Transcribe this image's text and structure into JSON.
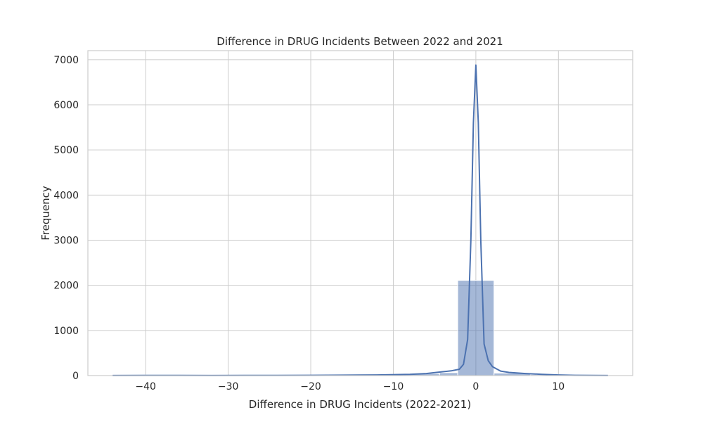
{
  "chart_data": {
    "type": "bar",
    "title": "Difference in DRUG Incidents Between 2022 and 2021",
    "xlabel": "Difference in DRUG Incidents (2022-2021)",
    "ylabel": "Frequency",
    "xlim": [
      -47,
      19
    ],
    "ylim": [
      0,
      7200
    ],
    "xticks": [
      -40,
      -30,
      -20,
      -10,
      0,
      10
    ],
    "xtick_labels": [
      "−40",
      "−30",
      "−20",
      "−10",
      "0",
      "10"
    ],
    "yticks": [
      0,
      1000,
      2000,
      3000,
      4000,
      5000,
      6000,
      7000
    ],
    "ytick_labels": [
      "0",
      "1000",
      "2000",
      "3000",
      "4000",
      "5000",
      "6000",
      "7000"
    ],
    "grid": true,
    "bar_color": "#4c72b0",
    "line_color": "#4c72b0",
    "histogram_bins": [
      {
        "x0": -44.0,
        "x1": -39.6,
        "value": 15
      },
      {
        "x0": -39.6,
        "x1": -35.2,
        "value": 12
      },
      {
        "x0": -35.2,
        "x1": -30.8,
        "value": 3
      },
      {
        "x0": -30.8,
        "x1": -26.4,
        "value": 4
      },
      {
        "x0": -26.4,
        "x1": -22.0,
        "value": 6
      },
      {
        "x0": -22.0,
        "x1": -17.6,
        "value": 10
      },
      {
        "x0": -17.6,
        "x1": -13.2,
        "value": 16
      },
      {
        "x0": -13.2,
        "x1": -8.8,
        "value": 25
      },
      {
        "x0": -8.8,
        "x1": -4.4,
        "value": 45
      },
      {
        "x0": -4.4,
        "x1": -2.2,
        "value": 65
      },
      {
        "x0": -2.2,
        "x1": 2.2,
        "value": 2110
      },
      {
        "x0": 2.2,
        "x1": 6.6,
        "value": 55
      },
      {
        "x0": 6.6,
        "x1": 11.0,
        "value": 20
      },
      {
        "x0": 11.0,
        "x1": 16.0,
        "value": 14
      }
    ],
    "kde": {
      "x": [
        -44,
        -40,
        -36,
        -32,
        -28,
        -24,
        -20,
        -16,
        -12,
        -8,
        -6,
        -4,
        -3,
        -2,
        -1.5,
        -1,
        -0.6,
        -0.3,
        0,
        0.3,
        0.6,
        1,
        1.5,
        2,
        3,
        4,
        6,
        8,
        10,
        12,
        14,
        16
      ],
      "y": [
        2,
        3,
        3,
        2,
        3,
        4,
        6,
        9,
        14,
        28,
        45,
        85,
        105,
        140,
        250,
        800,
        3000,
        5600,
        6880,
        5600,
        3000,
        700,
        330,
        200,
        100,
        70,
        45,
        28,
        14,
        6,
        3,
        2
      ]
    }
  }
}
